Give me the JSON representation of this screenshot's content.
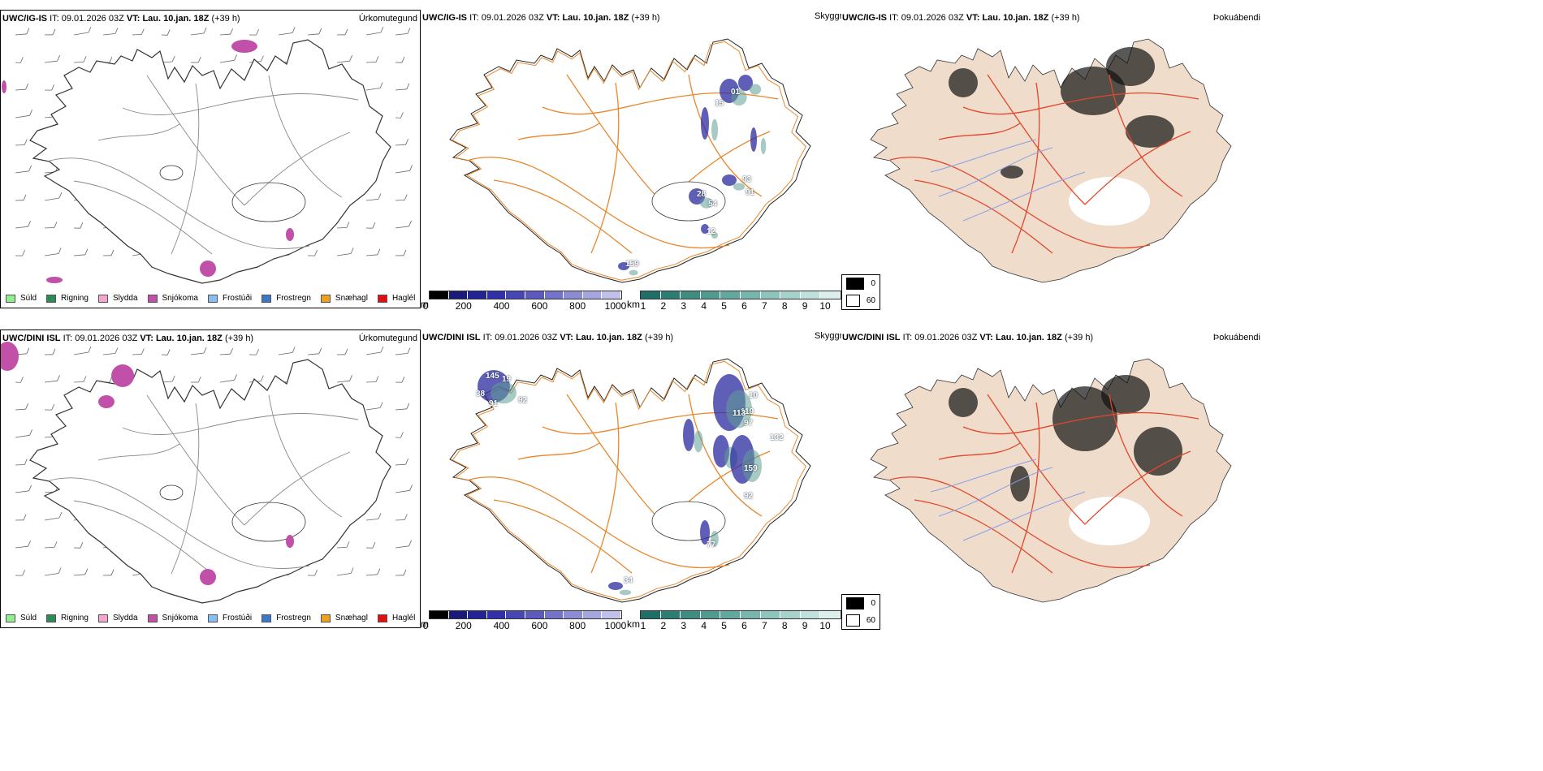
{
  "rows": [
    {
      "model": "UWC/IG-IS",
      "it_label": "IT:",
      "it_value": "09.01.2026 03Z",
      "vt_label": "VT:",
      "vt_value": "Lau. 10.jan. 18Z",
      "lead": "(+39 h)"
    },
    {
      "model": "UWC/DINI ISL",
      "it_label": "IT:",
      "it_value": "09.01.2026 03Z",
      "vt_label": "VT:",
      "vt_value": "Lau. 10.jan. 18Z",
      "lead": "(+39 h)"
    }
  ],
  "panel_titles": {
    "precip": "Úrkomutegund",
    "visibility": "Skyggni",
    "fog": "Þokuábendi"
  },
  "precip_legend": [
    {
      "label": "Súld",
      "color": "#90ee90"
    },
    {
      "label": "Rigning",
      "color": "#2e8b57"
    },
    {
      "label": "Slydda",
      "color": "#f4a6cf"
    },
    {
      "label": "Snjókoma",
      "color": "#c050a8"
    },
    {
      "label": "Frostúði",
      "color": "#87bff0"
    },
    {
      "label": "Frostregn",
      "color": "#3b78c8"
    },
    {
      "label": "Snæhagl",
      "color": "#f0a020"
    },
    {
      "label": "Haglél",
      "color": "#e01010"
    }
  ],
  "height_scale": {
    "unit": "m",
    "ticks": [
      "0",
      "200",
      "400",
      "600",
      "800",
      "1000"
    ],
    "colors": [
      "#000000",
      "#1a1a7a",
      "#232394",
      "#3030a8",
      "#4646b4",
      "#5a5abf",
      "#7373c9",
      "#8c8cd4",
      "#a6a6de",
      "#c0c0e8"
    ]
  },
  "vis_scale": {
    "unit": "km",
    "ticks": [
      "1",
      "2",
      "3",
      "4",
      "5",
      "6",
      "7",
      "8",
      "9",
      "10"
    ],
    "colors": [
      "#1e6f67",
      "#2e7d74",
      "#3f8c82",
      "#519a90",
      "#63a89e",
      "#78b6ad",
      "#8fc4bc",
      "#a7d2cb",
      "#c0e0db",
      "#dbeeeb"
    ]
  },
  "fog_legend": [
    {
      "label": "0",
      "color": "#000000"
    },
    {
      "label": "60",
      "color": "#ffffff"
    }
  ],
  "vis_labels_top": [
    "01",
    "15",
    "28",
    "54",
    "93",
    "91",
    "12",
    "159"
  ],
  "vis_labels_bottom": [
    "145",
    "19",
    "38",
    "91",
    "92",
    "10",
    "119",
    "113",
    "97",
    "132",
    "159",
    "92",
    "77",
    "34"
  ]
}
